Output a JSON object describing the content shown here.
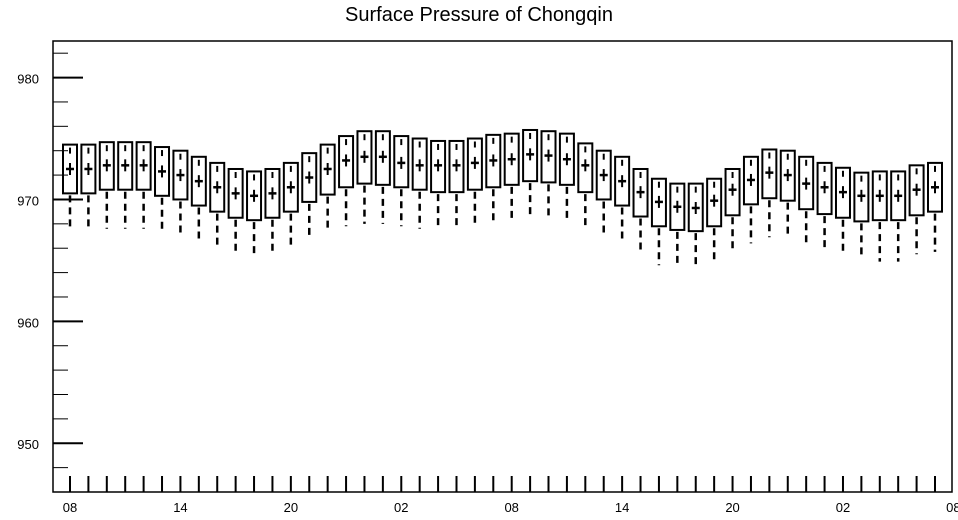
{
  "chart_data": {
    "type": "box",
    "title": "Surface Pressure of Chongqin",
    "xlabel": "",
    "ylabel": "",
    "ylim": [
      946,
      983
    ],
    "yticks": [
      950,
      960,
      970,
      980
    ],
    "yticks_labels": [
      "950",
      "960",
      "970",
      "980"
    ],
    "xticks_labels": [
      "08",
      "14",
      "20",
      "02",
      "08",
      "14",
      "20",
      "02",
      "08"
    ],
    "grid": false,
    "series": [
      {
        "median": [
          972.5,
          972.5,
          972.8,
          972.8,
          972.8,
          972.3,
          972.0,
          971.5,
          971.0,
          970.5,
          970.3,
          970.5,
          971.0,
          971.8,
          972.5,
          973.2,
          973.5,
          973.5,
          973.0,
          972.8,
          972.8,
          972.8,
          973.0,
          973.2,
          973.3,
          973.7,
          973.6,
          973.3,
          972.8,
          972.0,
          971.5,
          970.6,
          969.8,
          969.4,
          969.3,
          969.9,
          970.8,
          971.6,
          972.2,
          972.0,
          971.3,
          971.0,
          970.6,
          970.3,
          970.3,
          970.3,
          970.8,
          971.0
        ],
        "q1": [
          970.5,
          970.5,
          970.8,
          970.8,
          970.8,
          970.3,
          970.0,
          969.5,
          969.0,
          968.5,
          968.3,
          968.5,
          969.0,
          969.8,
          970.4,
          971.0,
          971.3,
          971.2,
          971.0,
          970.8,
          970.6,
          970.6,
          970.8,
          971.0,
          971.2,
          971.5,
          971.4,
          971.2,
          970.6,
          970.0,
          969.5,
          968.6,
          967.8,
          967.5,
          967.4,
          967.8,
          968.7,
          969.6,
          970.1,
          969.9,
          969.2,
          968.8,
          968.5,
          968.2,
          968.3,
          968.3,
          968.7,
          969.0
        ],
        "q3": [
          974.5,
          974.5,
          974.7,
          974.7,
          974.7,
          974.3,
          974.0,
          973.5,
          973.0,
          972.5,
          972.3,
          972.5,
          973.0,
          973.8,
          974.5,
          975.2,
          975.6,
          975.6,
          975.2,
          975.0,
          974.8,
          974.8,
          975.0,
          975.3,
          975.4,
          975.7,
          975.6,
          975.4,
          974.6,
          974.0,
          973.5,
          972.5,
          971.7,
          971.3,
          971.3,
          971.7,
          972.5,
          973.5,
          974.1,
          974.0,
          973.5,
          973.0,
          972.6,
          972.2,
          972.3,
          972.3,
          972.8,
          973.0
        ],
        "whisker_low": [
          967.4,
          967.4,
          967.6,
          967.6,
          967.6,
          967.2,
          967.0,
          966.4,
          966.0,
          965.5,
          965.3,
          965.5,
          966.0,
          966.8,
          967.4,
          967.8,
          968.0,
          968.0,
          967.8,
          967.6,
          967.5,
          967.5,
          967.7,
          968.0,
          968.1,
          968.4,
          968.3,
          968.1,
          967.5,
          967.0,
          966.4,
          965.6,
          964.6,
          964.4,
          964.3,
          964.7,
          965.6,
          966.4,
          966.9,
          966.8,
          966.1,
          965.7,
          965.4,
          965.1,
          964.9,
          964.9,
          965.5,
          965.7
        ]
      }
    ]
  }
}
